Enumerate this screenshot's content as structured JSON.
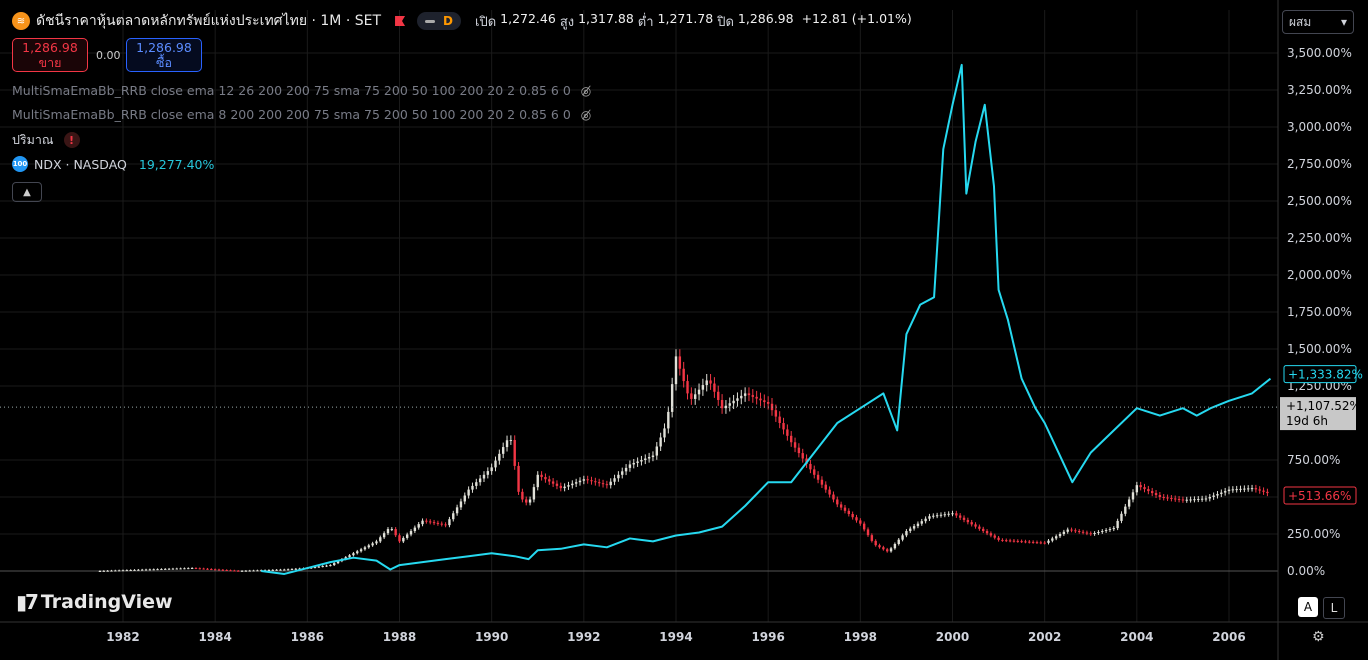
{
  "header": {
    "symbol_icon": "coin-icon",
    "title": "ดัชนีราคาหุ้นตลาดหลักทรัพย์แห่งประเทศไทย · 1M · SET",
    "d_badge": "D",
    "ohlc": [
      {
        "label": "เปิด",
        "value": "1,272.46"
      },
      {
        "label": "สูง",
        "value": "1,317.88"
      },
      {
        "label": "ต่ำ",
        "value": "1,271.78"
      },
      {
        "label": "ปิด",
        "value": "1,286.98"
      }
    ],
    "change": "+12.81 (+1.01%)"
  },
  "trade": {
    "sell_price": "1,286.98",
    "sell_label": "ขาย",
    "spread": "0.00",
    "buy_price": "1,286.98",
    "buy_label": "ซื้อ"
  },
  "indicators": [
    "MultiSmaEmaBb_RRB close ema 12 26 200 200 75 sma 75 200 50 100 200 20 2 0.85 6 0",
    "MultiSmaEmaBb_RRB close ema 8 200 200 200 75 sma 75 200 50 100 200 20 2 0.85 6 0"
  ],
  "volume_label": "ปริมาณ",
  "compare": {
    "symbol": "NDX · NASDAQ",
    "value": "19,277.40%",
    "icon_text": "100"
  },
  "scale_mode": "ผสม",
  "logo_text": "TradingView",
  "btn_a": "A",
  "btn_l": "L",
  "colors": {
    "up": "#e0e0d8",
    "down": "#f23645",
    "ndx": "#26d9f0"
  },
  "chart_data": {
    "type": "line",
    "x_ticks": [
      "1982",
      "1984",
      "1986",
      "1988",
      "1990",
      "1992",
      "1994",
      "1996",
      "1998",
      "2000",
      "2002",
      "2004",
      "2006"
    ],
    "y_ticks": [
      "3,500.00%",
      "3,250.00%",
      "3,000.00%",
      "2,750.00%",
      "2,500.00%",
      "2,250.00%",
      "2,000.00%",
      "1,750.00%",
      "1,500.00%",
      "1,250.00%",
      "750.00%",
      "500.00%",
      "250.00%",
      "0.00%"
    ],
    "ylim": [
      0,
      3500
    ],
    "xlim": [
      1981.0,
      2007.0
    ],
    "price_labels": [
      {
        "text": "+1,333.82%",
        "value": 1333.82,
        "style": "ndx"
      },
      {
        "text": "+1,107.52%",
        "value": 1107.52,
        "style": "cursor",
        "sub": "19d 6h"
      },
      {
        "text": "+513.66%",
        "value": 513.66,
        "style": "set"
      }
    ],
    "series": [
      {
        "name": "SET",
        "x": [
          1981.5,
          1982.5,
          1983.5,
          1984.5,
          1985.5,
          1986.0,
          1986.5,
          1987.0,
          1987.5,
          1987.8,
          1988.0,
          1988.5,
          1989.0,
          1989.5,
          1990.0,
          1990.4,
          1990.6,
          1990.8,
          1991.0,
          1991.5,
          1992.0,
          1992.5,
          1993.0,
          1993.5,
          1993.8,
          1994.0,
          1994.3,
          1994.7,
          1995.0,
          1995.5,
          1996.0,
          1996.5,
          1997.0,
          1997.5,
          1998.0,
          1998.3,
          1998.6,
          1999.0,
          1999.5,
          2000.0,
          2000.5,
          2001.0,
          2001.5,
          2002.0,
          2002.5,
          2003.0,
          2003.5,
          2004.0,
          2004.5,
          2005.0,
          2005.5,
          2006.0,
          2006.5,
          2006.9
        ],
        "y": [
          0,
          10,
          20,
          0,
          10,
          20,
          40,
          120,
          200,
          300,
          200,
          340,
          310,
          550,
          700,
          920,
          500,
          450,
          650,
          560,
          620,
          580,
          720,
          780,
          1000,
          1450,
          1150,
          1300,
          1100,
          1200,
          1130,
          870,
          650,
          450,
          320,
          180,
          130,
          270,
          370,
          390,
          300,
          210,
          200,
          190,
          280,
          250,
          290,
          580,
          500,
          480,
          490,
          550,
          560,
          520
        ],
        "style": "candles"
      },
      {
        "name": "NDX",
        "x": [
          1985.0,
          1985.5,
          1986.0,
          1986.5,
          1987.0,
          1987.5,
          1987.8,
          1988.0,
          1988.5,
          1989.0,
          1989.5,
          1990.0,
          1990.5,
          1990.8,
          1991.0,
          1991.5,
          1992.0,
          1992.5,
          1993.0,
          1993.5,
          1994.0,
          1994.5,
          1995.0,
          1995.5,
          1996.0,
          1996.5,
          1997.0,
          1997.5,
          1998.0,
          1998.5,
          1998.8,
          1999.0,
          1999.3,
          1999.6,
          1999.8,
          2000.0,
          2000.2,
          2000.3,
          2000.5,
          2000.7,
          2000.9,
          2001.0,
          2001.2,
          2001.5,
          2001.8,
          2002.0,
          2002.3,
          2002.6,
          2002.8,
          2003.0,
          2003.5,
          2004.0,
          2004.5,
          2005.0,
          2005.3,
          2005.6,
          2006.0,
          2006.5,
          2006.9
        ],
        "y": [
          0,
          -20,
          20,
          60,
          90,
          70,
          10,
          40,
          60,
          80,
          100,
          120,
          100,
          80,
          140,
          150,
          180,
          160,
          220,
          200,
          240,
          260,
          300,
          440,
          600,
          600,
          800,
          1000,
          1100,
          1200,
          950,
          1600,
          1800,
          1850,
          2850,
          3150,
          3420,
          2550,
          2900,
          3150,
          2600,
          1900,
          1700,
          1300,
          1100,
          1000,
          800,
          600,
          700,
          800,
          950,
          1100,
          1050,
          1100,
          1050,
          1100,
          1150,
          1200,
          1300
        ],
        "style": "line"
      }
    ]
  }
}
